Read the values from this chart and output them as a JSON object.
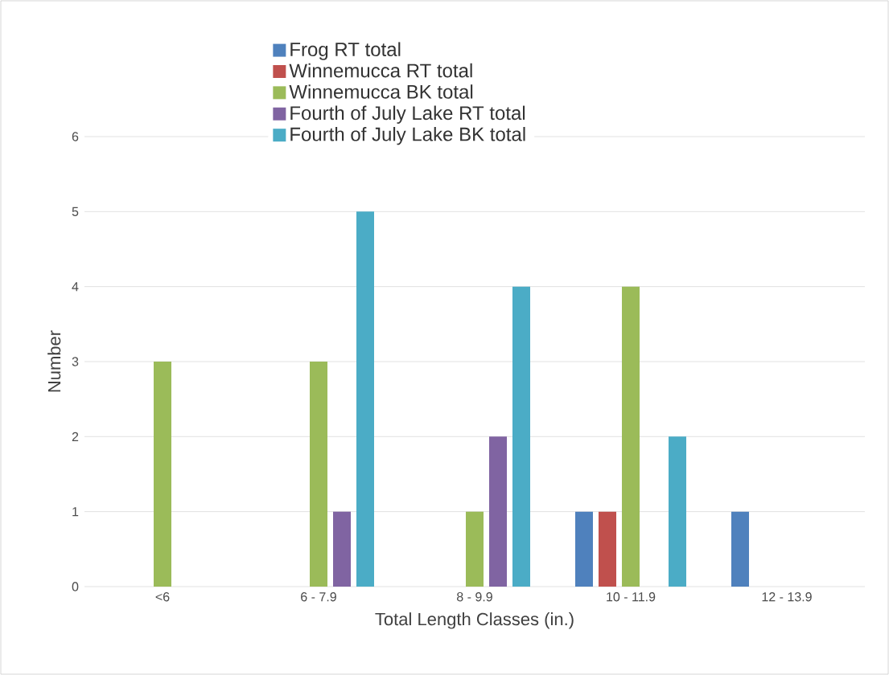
{
  "chart_data": {
    "type": "bar",
    "xlabel": "Total Length Classes (in.)",
    "ylabel": "Number",
    "categories": [
      "<6",
      "6 - 7.9",
      "8 - 9.9",
      "10 - 11.9",
      "12 - 13.9"
    ],
    "series": [
      {
        "name": "Frog RT total",
        "color": "#4f81bd",
        "values": [
          0,
          0,
          0,
          1,
          1
        ]
      },
      {
        "name": "Winnemucca RT total",
        "color": "#c0504d",
        "values": [
          0,
          0,
          0,
          1,
          0
        ]
      },
      {
        "name": "Winnemucca BK total",
        "color": "#9bbb59",
        "values": [
          3,
          3,
          1,
          4,
          0
        ]
      },
      {
        "name": "Fourth of July Lake RT total",
        "color": "#8064a2",
        "values": [
          0,
          1,
          2,
          0,
          0
        ]
      },
      {
        "name": "Fourth of July Lake BK total",
        "color": "#4bacc6",
        "values": [
          0,
          5,
          4,
          2,
          0
        ]
      }
    ],
    "ylim": [
      0,
      6
    ],
    "yticks": [
      0,
      1,
      2,
      3,
      4,
      5,
      6
    ],
    "grid": "y",
    "legend": "top"
  }
}
